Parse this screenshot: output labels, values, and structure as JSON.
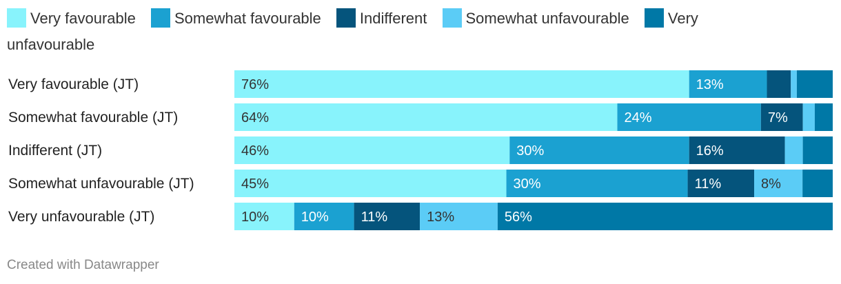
{
  "chart_data": {
    "type": "bar",
    "orientation": "horizontal",
    "stacked": true,
    "normalized": true,
    "categories": [
      "Very favourable (JT)",
      "Somewhat favourable (JT)",
      "Indifferent (JT)",
      "Somewhat unfavourable (JT)",
      "Very unfavourable (JT)"
    ],
    "series": [
      {
        "name": "Very favourable",
        "values": [
          76,
          64,
          46,
          45,
          10
        ],
        "color": "#88f3fc",
        "label_color": "#333333"
      },
      {
        "name": "Somewhat favourable",
        "values": [
          13,
          24,
          30,
          30,
          10
        ],
        "color": "#1ba1d1",
        "label_color": "#ffffff"
      },
      {
        "name": "Indifferent",
        "values": [
          4,
          7,
          16,
          11,
          11
        ],
        "color": "#05547c",
        "label_color": "#ffffff"
      },
      {
        "name": "Somewhat unfavourable",
        "values": [
          1,
          2,
          3,
          8,
          13
        ],
        "color": "#5bccf6",
        "label_color": "#333333"
      },
      {
        "name": "Very unfavourable",
        "values": [
          6,
          3,
          5,
          5,
          56
        ],
        "color": "#0078a6",
        "label_color": "#ffffff"
      }
    ],
    "value_labels": [
      [
        "76%",
        "13%",
        "",
        "",
        ""
      ],
      [
        "64%",
        "24%",
        "7%",
        "",
        ""
      ],
      [
        "46%",
        "30%",
        "16%",
        "",
        ""
      ],
      [
        "45%",
        "30%",
        "11%",
        "8%",
        ""
      ],
      [
        "10%",
        "10%",
        "11%",
        "13%",
        "56%"
      ]
    ],
    "legend_position": "top-left",
    "grid": false
  },
  "footer": {
    "credit": "Created with Datawrapper"
  }
}
